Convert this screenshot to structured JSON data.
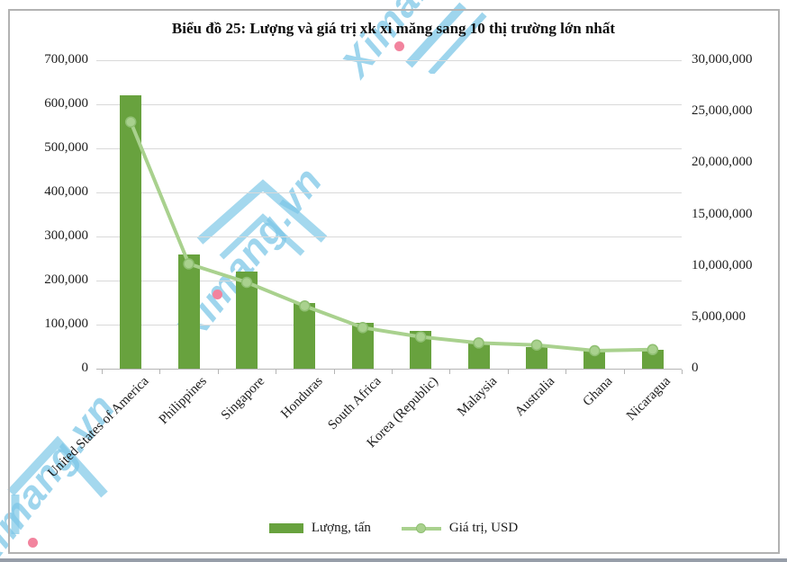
{
  "page": {
    "window_title": "Biểu đồ 25"
  },
  "watermark": {
    "text": "Ximang.vn",
    "color": "#7ec7e7",
    "dot_color": "#f2849e"
  },
  "chart_data": {
    "type": "bar",
    "subtype": "combo bar+line, dual axis",
    "title": "Biểu đồ 25: Lượng và giá trị xk xi măng sang 10 thị trường lớn nhất",
    "categories": [
      "United States of America",
      "Philippines",
      "Singapore",
      "Honduras",
      "South Africa",
      "Korea (Republic)",
      "Malaysia",
      "Australia",
      "Ghana",
      "Nicaragua"
    ],
    "series": [
      {
        "name": "Lượng, tấn",
        "type": "bar",
        "axis": "left",
        "color": "#68a23e",
        "values": [
          620000,
          260000,
          220000,
          148000,
          105000,
          86000,
          62000,
          48000,
          40000,
          43000
        ]
      },
      {
        "name": "Giá trị, USD",
        "type": "line",
        "axis": "right",
        "color": "#a9d18e",
        "marker_edge": "#8fbf72",
        "values": [
          24000000,
          10200000,
          8400000,
          6100000,
          4000000,
          3100000,
          2500000,
          2300000,
          1750000,
          1850000
        ]
      }
    ],
    "axes": {
      "left": {
        "min": 0,
        "max": 700000,
        "step": 100000,
        "tick_labels": [
          "0",
          "100,000",
          "200,000",
          "300,000",
          "400,000",
          "500,000",
          "600,000",
          "700,000"
        ]
      },
      "right": {
        "min": 0,
        "max": 30000000,
        "step": 5000000,
        "tick_labels": [
          "0",
          "5,000,000",
          "10,000,000",
          "15,000,000",
          "20,000,000",
          "25,000,000",
          "30,000,000"
        ]
      }
    },
    "grid": true,
    "legend_position": "bottom",
    "xlabel": "",
    "ylabel_left": "",
    "ylabel_right": ""
  }
}
